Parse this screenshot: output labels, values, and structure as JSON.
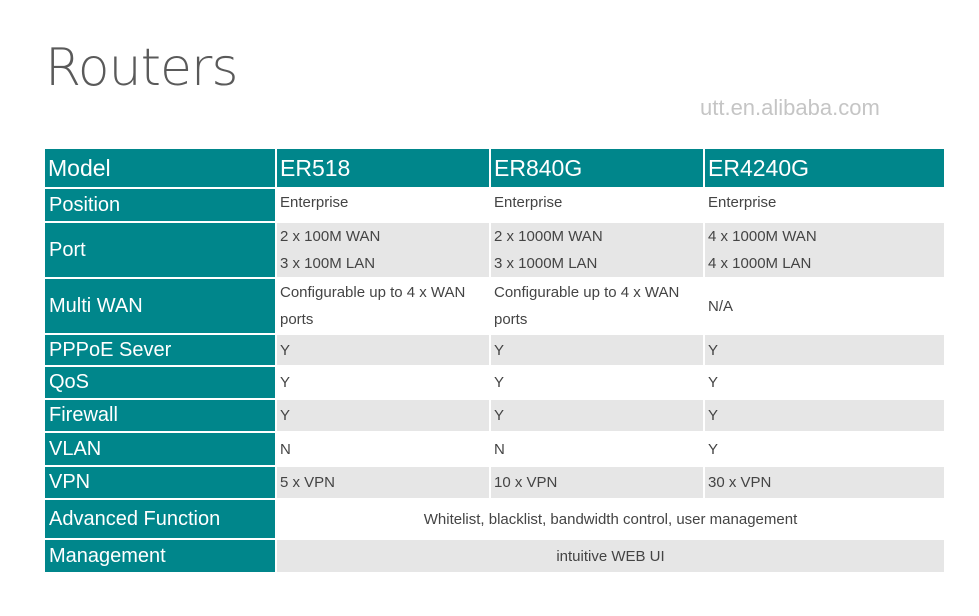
{
  "title": "Routers",
  "watermark": "utt.en.alibaba.com",
  "header": {
    "label": "Model",
    "models": [
      "ER518",
      "ER840G",
      "ER4240G"
    ]
  },
  "rows": [
    {
      "label": "Position",
      "values": [
        "Enterprise",
        "Enterprise",
        "Enterprise"
      ]
    },
    {
      "label": "Port",
      "values": [
        [
          "2 x 100M WAN",
          "3 x 100M LAN"
        ],
        [
          "2 x 1000M WAN",
          "3 x 1000M LAN"
        ],
        [
          "4 x 1000M WAN",
          "4 x 1000M LAN"
        ]
      ]
    },
    {
      "label": "Multi WAN",
      "values": [
        [
          "Configurable up to 4 x WAN",
          "ports"
        ],
        [
          "Configurable up to 4 x WAN",
          "ports"
        ],
        "N/A"
      ]
    },
    {
      "label": "PPPoE Sever",
      "values": [
        "Y",
        "Y",
        "Y"
      ]
    },
    {
      "label": "QoS",
      "values": [
        "Y",
        "Y",
        "Y"
      ]
    },
    {
      "label": "Firewall",
      "values": [
        "Y",
        "Y",
        "Y"
      ]
    },
    {
      "label": "VLAN",
      "values": [
        "N",
        "N",
        "Y"
      ]
    },
    {
      "label": "VPN",
      "values": [
        "5 x VPN",
        "10  x VPN",
        "30  x VPN"
      ]
    },
    {
      "label": "Advanced Function",
      "span_value": "Whitelist, blacklist, bandwidth control, user management"
    },
    {
      "label": "Management",
      "span_value": "intuitive WEB UI"
    }
  ],
  "colors": {
    "header_bg": "#00868b",
    "alt_row_bg": "#e6e6e6"
  }
}
